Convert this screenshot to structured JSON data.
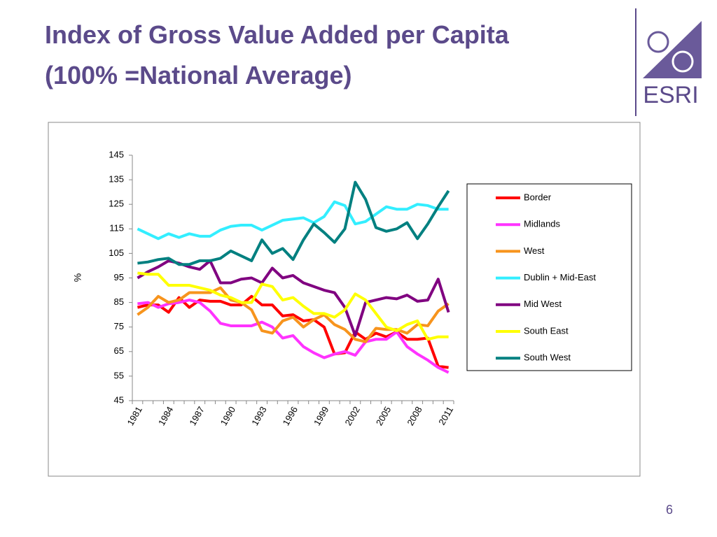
{
  "slide": {
    "title_lines": [
      "Index of Gross Value Added per Capita",
      "(100% =National Average)"
    ],
    "logo": "ESRI",
    "page_number": 6
  },
  "chart_data": {
    "type": "line",
    "categories": [
      "1981",
      null,
      null,
      "1984",
      null,
      null,
      "1987",
      null,
      null,
      "1990",
      null,
      null,
      "1993",
      null,
      null,
      "1996",
      null,
      null,
      "1999",
      null,
      null,
      "2002",
      null,
      null,
      "2005",
      null,
      null,
      "2008",
      null,
      null,
      "2011"
    ],
    "ylabel": "%",
    "ylim": [
      45,
      145
    ],
    "yticks": [
      45,
      55,
      65,
      75,
      85,
      95,
      105,
      115,
      125,
      135,
      145
    ],
    "legend": "right",
    "series": [
      {
        "name": "Border",
        "color": "#ff0000",
        "values": [
          83,
          84,
          84,
          81,
          87,
          83,
          86,
          85.5,
          85.5,
          84,
          84,
          87.5,
          84,
          84,
          79.5,
          80,
          77.5,
          78,
          75,
          64,
          64.5,
          73,
          70,
          72.5,
          71,
          73,
          70,
          70,
          70.5,
          59,
          58.5
        ]
      },
      {
        "name": "Midlands",
        "color": "#ff33ff",
        "values": [
          84.5,
          85,
          83,
          84.5,
          85,
          86,
          85,
          81.5,
          76.5,
          75.5,
          75.5,
          75.5,
          77,
          75,
          70.5,
          71.5,
          67,
          64.5,
          62.5,
          64,
          65,
          63.5,
          69,
          70,
          70,
          73,
          67,
          64,
          61.5,
          58.5,
          56.5
        ]
      },
      {
        "name": "West",
        "color": "#f7941d",
        "values": [
          80,
          83,
          87.5,
          85,
          86,
          89,
          89,
          89,
          91,
          86,
          85,
          82,
          73.5,
          72.5,
          77.5,
          79,
          75,
          78,
          80,
          76,
          74,
          70,
          69,
          74.5,
          74,
          74,
          72.5,
          76,
          75.5,
          81.5,
          84.5
        ]
      },
      {
        "name": "Dublin + Mid-East",
        "color": "#33eeff",
        "values": [
          115,
          113,
          111,
          113,
          111.5,
          113,
          112,
          112,
          114.5,
          116,
          116.5,
          116.5,
          114.5,
          116.5,
          118.5,
          119,
          119.5,
          117.5,
          120,
          126,
          124.5,
          117,
          118,
          121,
          124,
          123,
          123,
          125,
          124.5,
          123,
          123
        ]
      },
      {
        "name": "Mid West",
        "color": "#800080",
        "values": [
          95,
          97.5,
          99.5,
          102,
          101,
          99.5,
          98.5,
          102,
          93,
          93,
          94.5,
          95,
          93,
          99,
          95,
          96,
          93,
          91.5,
          90,
          89,
          83,
          71.5,
          85,
          86,
          87,
          86.5,
          88,
          85.5,
          86,
          94.5,
          81
        ]
      },
      {
        "name": "South East",
        "color": "#ffff00",
        "values": [
          97,
          96.5,
          96.5,
          92,
          92,
          92,
          91,
          90,
          88,
          87,
          85,
          85,
          92.5,
          91.5,
          86,
          87,
          83.5,
          80.5,
          80.5,
          79,
          82,
          88.5,
          86,
          80.5,
          75,
          73.5,
          76,
          77.5,
          70,
          71,
          71
        ]
      },
      {
        "name": "South West",
        "color": "#008080",
        "values": [
          101,
          101.5,
          102.5,
          103,
          100.5,
          100.5,
          102,
          102,
          103,
          106,
          104,
          102,
          110.5,
          105,
          107,
          102.5,
          110.5,
          117,
          113.5,
          109.5,
          115,
          134,
          127,
          115.5,
          114,
          115,
          117.5,
          111,
          117,
          124,
          130.5
        ]
      }
    ]
  }
}
